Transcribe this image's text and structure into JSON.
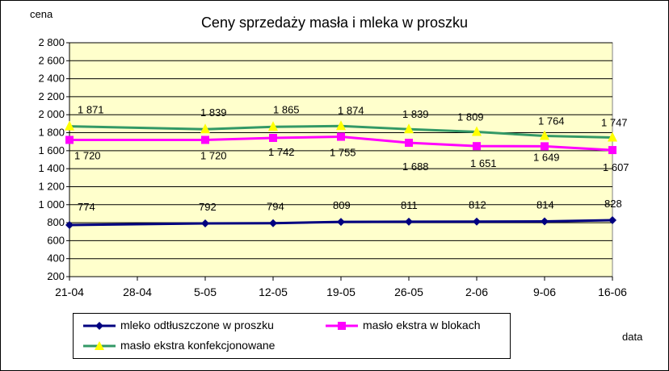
{
  "chart_data": {
    "type": "line",
    "title": "Ceny sprzedaży masła i mleka w proszku",
    "ylabel": "cena",
    "xlabel": "data",
    "categories": [
      "21-04",
      "28-04",
      "5-05",
      "12-05",
      "19-05",
      "26-05",
      "2-06",
      "9-06",
      "16-06"
    ],
    "yticks": [
      "200",
      "400",
      "600",
      "800",
      "1 000",
      "1 200",
      "1 400",
      "1 600",
      "1 800",
      "2 000",
      "2 200",
      "2 400",
      "2 600",
      "2 800"
    ],
    "ylim": [
      200,
      2800
    ],
    "grid": true,
    "legend_position": "bottom",
    "series": [
      {
        "name": "mleko odtłuszczone w proszku",
        "color": "#000080",
        "marker": "diamond",
        "points": [
          {
            "x": "21-04",
            "y": 774,
            "label": "774"
          },
          {
            "x": "5-05",
            "y": 792,
            "label": "792"
          },
          {
            "x": "12-05",
            "y": 794,
            "label": "794"
          },
          {
            "x": "19-05",
            "y": 809,
            "label": "809"
          },
          {
            "x": "26-05",
            "y": 811,
            "label": "811"
          },
          {
            "x": "2-06",
            "y": 812,
            "label": "812"
          },
          {
            "x": "9-06",
            "y": 814,
            "label": "814"
          },
          {
            "x": "16-06",
            "y": 828,
            "label": "828"
          }
        ]
      },
      {
        "name": "masło ekstra w blokach",
        "color": "#ff00ff",
        "marker": "square",
        "points": [
          {
            "x": "21-04",
            "y": 1720,
            "label": "1 720"
          },
          {
            "x": "5-05",
            "y": 1720,
            "label": "1 720"
          },
          {
            "x": "12-05",
            "y": 1742,
            "label": "1 742"
          },
          {
            "x": "19-05",
            "y": 1755,
            "label": "1 755"
          },
          {
            "x": "26-05",
            "y": 1688,
            "label": "1 688"
          },
          {
            "x": "2-06",
            "y": 1651,
            "label": "1 651"
          },
          {
            "x": "9-06",
            "y": 1649,
            "label": "1 649"
          },
          {
            "x": "16-06",
            "y": 1607,
            "label": "1 607"
          }
        ]
      },
      {
        "name": "masło ekstra konfekcjonowane",
        "color": "#339966",
        "marker": "triangle",
        "marker_color": "#ffff00",
        "points": [
          {
            "x": "21-04",
            "y": 1871,
            "label": "1 871"
          },
          {
            "x": "5-05",
            "y": 1839,
            "label": "1 839"
          },
          {
            "x": "12-05",
            "y": 1865,
            "label": "1 865"
          },
          {
            "x": "19-05",
            "y": 1874,
            "label": "1 874"
          },
          {
            "x": "26-05",
            "y": 1839,
            "label": "1 839"
          },
          {
            "x": "2-06",
            "y": 1809,
            "label": "1 809"
          },
          {
            "x": "9-06",
            "y": 1764,
            "label": "1 764"
          },
          {
            "x": "16-06",
            "y": 1747,
            "label": "1 747"
          }
        ]
      }
    ],
    "plot_background": "#ffffcc",
    "grid_color": "#000000"
  }
}
